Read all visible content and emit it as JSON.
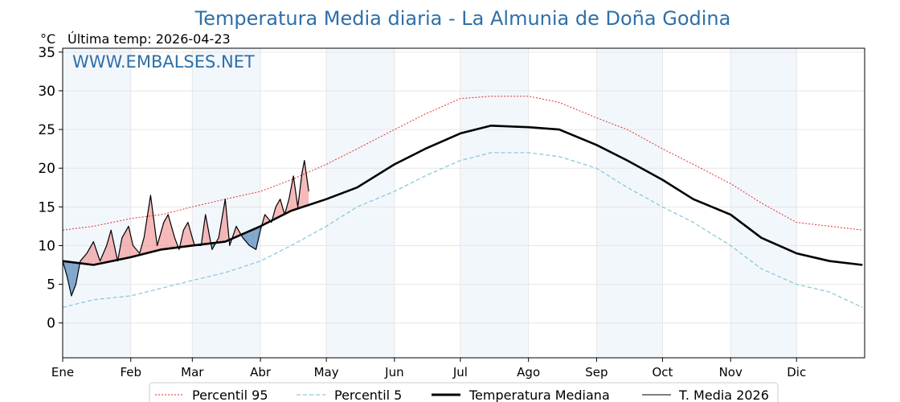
{
  "chart_data": {
    "type": "line",
    "title": "Temperatura Media diaria - La Almunia de Doña Godina",
    "unit_label": "°C",
    "last_temp_label": "Última temp: 2026-04-23",
    "watermark": "WWW.EMBALSES.NET",
    "ylim": [
      -4.5,
      35.5
    ],
    "yticks": [
      0,
      5,
      10,
      15,
      20,
      25,
      30,
      35
    ],
    "month_labels": [
      "Ene",
      "Feb",
      "Mar",
      "Abr",
      "May",
      "Jun",
      "Jul",
      "Ago",
      "Sep",
      "Oct",
      "Nov",
      "Dic"
    ],
    "month_start_days": [
      1,
      32,
      60,
      91,
      121,
      152,
      182,
      213,
      244,
      274,
      305,
      335
    ],
    "grid": true,
    "legend_position": "bottom",
    "x_unit": "day of year",
    "series": [
      {
        "name": "Percentil 95",
        "color": "#e03030",
        "style": "dotted",
        "x": [
          1,
          15,
          32,
          46,
          60,
          75,
          91,
          105,
          121,
          135,
          152,
          166,
          182,
          196,
          213,
          227,
          244,
          258,
          274,
          288,
          305,
          319,
          335,
          350,
          365
        ],
        "values": [
          12,
          12.5,
          13.5,
          14,
          15,
          16,
          17,
          18.5,
          20.5,
          22.5,
          25,
          27,
          29,
          29.3,
          29.3,
          28.5,
          26.5,
          25,
          22.5,
          20.5,
          18,
          15.5,
          13,
          12.5,
          12
        ]
      },
      {
        "name": "Percentil 5",
        "color": "#8ec8dc",
        "style": "dashed",
        "x": [
          1,
          15,
          32,
          46,
          60,
          75,
          91,
          105,
          121,
          135,
          152,
          166,
          182,
          196,
          213,
          227,
          244,
          258,
          274,
          288,
          305,
          319,
          335,
          350,
          365
        ],
        "values": [
          2,
          3,
          3.5,
          4.5,
          5.5,
          6.5,
          8,
          10,
          12.5,
          15,
          17,
          19,
          21,
          22,
          22,
          21.5,
          20,
          17.5,
          15,
          13,
          10,
          7,
          5,
          4,
          2
        ]
      },
      {
        "name": "Temperatura Mediana",
        "color": "#000000",
        "style": "solid-thick",
        "x": [
          1,
          15,
          32,
          46,
          60,
          75,
          91,
          105,
          121,
          135,
          152,
          166,
          182,
          196,
          213,
          227,
          244,
          258,
          274,
          288,
          305,
          319,
          335,
          350,
          365
        ],
        "values": [
          8,
          7.5,
          8.5,
          9.5,
          10,
          10.5,
          12.5,
          14.5,
          16,
          17.5,
          20.5,
          22.5,
          24.5,
          25.5,
          25.3,
          25,
          23,
          21,
          18.5,
          16,
          14,
          11,
          9,
          8,
          7.5
        ]
      },
      {
        "name": "T. Media 2026",
        "color": "#000000",
        "style": "solid-thin",
        "x": [
          1,
          3,
          5,
          7,
          9,
          12,
          15,
          18,
          21,
          23,
          26,
          28,
          31,
          33,
          36,
          38,
          41,
          44,
          47,
          49,
          52,
          54,
          56,
          58,
          61,
          64,
          66,
          69,
          72,
          75,
          77,
          80,
          83,
          86,
          89,
          91,
          93,
          96,
          98,
          100,
          102,
          104,
          106,
          108,
          110,
          111,
          113
        ],
        "values": [
          8,
          6,
          3.5,
          5,
          8,
          9,
          10.5,
          8,
          10,
          12,
          8,
          11,
          12.5,
          10,
          9,
          11,
          16.5,
          10,
          13,
          14,
          11,
          9.5,
          12,
          13,
          10,
          10,
          14,
          9.5,
          11,
          16,
          10,
          12.5,
          11,
          10,
          9.5,
          12,
          14,
          13,
          15,
          16,
          14,
          16,
          19,
          15,
          19.5,
          21,
          17
        ]
      }
    ]
  }
}
